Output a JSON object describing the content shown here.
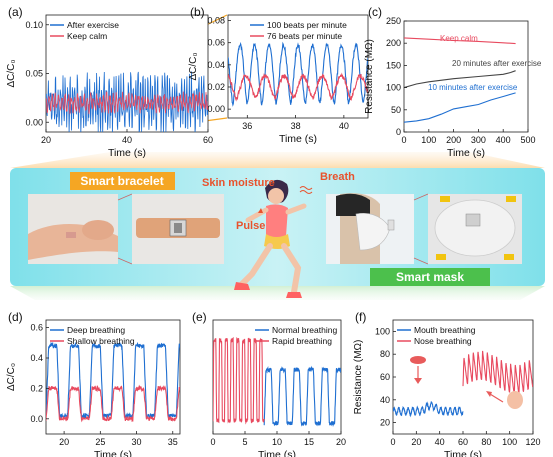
{
  "chart_data": [
    {
      "panel": "(a)",
      "type": "line",
      "xlabel": "Time (s)",
      "ylabel": "ΔC/C₀",
      "xlim": [
        20,
        60
      ],
      "ylim": [
        -0.01,
        0.11
      ],
      "xticks": [
        20,
        40,
        60
      ],
      "yticks": [
        0.0,
        0.05,
        0.1
      ],
      "ytick_labels": [
        "0.00",
        "0.05",
        "0.10"
      ],
      "legend": "top-left",
      "series": [
        {
          "name": "After exercise",
          "color": "#1f6fd1",
          "baseline": 0.02,
          "amplitude": 0.035,
          "period": 0.6
        },
        {
          "name": "Keep calm",
          "color": "#e84a5f",
          "baseline": 0.02,
          "amplitude": 0.012,
          "period": 0.79
        }
      ]
    },
    {
      "panel": "(b)",
      "type": "line",
      "xlabel": "Time (s)",
      "ylabel": "ΔC/C₀",
      "xlim": [
        35.2,
        41
      ],
      "ylim": [
        -0.008,
        0.085
      ],
      "xticks": [
        36,
        38,
        40
      ],
      "yticks": [
        0.0,
        0.02,
        0.04,
        0.06,
        0.08
      ],
      "ytick_labels": [
        "0.00",
        "0.02",
        "0.04",
        "0.06",
        "0.08"
      ],
      "legend": "top-right",
      "series": [
        {
          "name": "100 beats per minute",
          "color": "#1f6fd1",
          "peak": 0.058,
          "trough": 0.005,
          "period": 0.6
        },
        {
          "name": "76 beats per minute",
          "color": "#e84a5f",
          "peak": 0.03,
          "trough": 0.01,
          "period": 0.79
        }
      ]
    },
    {
      "panel": "(c)",
      "type": "line",
      "xlabel": "Time (s)",
      "ylabel": "Resistance (MΩ)",
      "xlim": [
        0,
        500
      ],
      "ylim": [
        0,
        250
      ],
      "xticks": [
        0,
        100,
        200,
        300,
        400,
        500
      ],
      "yticks": [
        0,
        50,
        100,
        150,
        200,
        250
      ],
      "series": [
        {
          "name": "Keep calm",
          "color": "#e84a5f",
          "x": [
            0,
            100,
            200,
            300,
            400,
            450
          ],
          "y": [
            212,
            209,
            206,
            204,
            201,
            199
          ]
        },
        {
          "name": "20 minutes after exercise",
          "color": "#444444",
          "x": [
            0,
            50,
            100,
            200,
            300,
            400,
            430,
            450
          ],
          "y": [
            100,
            108,
            113,
            120,
            125,
            130,
            134,
            138
          ]
        },
        {
          "name": "10 minutes after exercise",
          "color": "#1f6fd1",
          "x": [
            0,
            50,
            100,
            150,
            200,
            250,
            300,
            350,
            400,
            450
          ],
          "y": [
            22,
            25,
            30,
            40,
            52,
            57,
            62,
            72,
            80,
            88
          ]
        }
      ]
    },
    {
      "panel": "(d)",
      "type": "line",
      "xlabel": "Time (s)",
      "ylabel": "ΔC/C₀",
      "xlim": [
        17.5,
        36
      ],
      "ylim": [
        -0.1,
        0.65
      ],
      "xticks": [
        20,
        25,
        30,
        35
      ],
      "yticks": [
        0.0,
        0.2,
        0.4,
        0.6
      ],
      "ytick_labels": [
        "0.0",
        "0.2",
        "0.4",
        "0.6"
      ],
      "legend": "top-left",
      "series": [
        {
          "name": "Deep breathing",
          "color": "#1f6fd1",
          "baseline": 0.02,
          "plateau": 0.48,
          "period": 3.0
        },
        {
          "name": "Shallow breathing",
          "color": "#e84a5f",
          "baseline": 0.0,
          "plateau": 0.2,
          "period": 3.0
        }
      ]
    },
    {
      "panel": "(e)",
      "type": "line",
      "xlabel": "Time (s)",
      "ylabel": "",
      "xlim": [
        0,
        20
      ],
      "ylim": [
        -0.1,
        0.75
      ],
      "xticks": [
        0,
        5,
        10,
        15,
        20
      ],
      "yticks": [],
      "legend": "top-right",
      "series": [
        {
          "name": "Normal breathing",
          "color": "#1f6fd1",
          "x_range": [
            8,
            20
          ],
          "baseline": -0.02,
          "plateau": 0.38,
          "period": 2.2
        },
        {
          "name": "Rapid breathing",
          "color": "#e84a5f",
          "x_range": [
            0,
            8
          ],
          "baseline": 0.0,
          "plateau": 0.6,
          "period": 0.9
        }
      ]
    },
    {
      "panel": "(f)",
      "type": "line",
      "xlabel": "Time (s)",
      "ylabel": "Resistance (MΩ)",
      "xlim": [
        0,
        120
      ],
      "ylim": [
        10,
        110
      ],
      "xticks": [
        0,
        20,
        40,
        60,
        80,
        100,
        120
      ],
      "yticks": [
        20,
        40,
        60,
        80,
        100
      ],
      "legend": "top-left",
      "series": [
        {
          "name": "Mouth breathing",
          "color": "#1f6fd1",
          "x_range": [
            0,
            60
          ],
          "baseline": 30,
          "amplitude": 3
        },
        {
          "name": "Nose breathing",
          "color": "#e84a5f",
          "x_range": [
            60,
            120
          ],
          "baseline": 62,
          "amplitude": 25
        }
      ]
    }
  ],
  "panel_labels": [
    "(a)",
    "(b)",
    "(c)",
    "(d)",
    "(e)",
    "(f)"
  ],
  "illustration": {
    "smart_bracelet_label": "Smart bracelet",
    "smart_mask_label": "Smart mask",
    "skin_moisture_label": "Skin moisture",
    "breath_label": "Breath",
    "pulse_label": "Pulse",
    "accent_orange": "#f5a623",
    "accent_green": "#4cc04c",
    "band_color": "#5fd3e0"
  }
}
